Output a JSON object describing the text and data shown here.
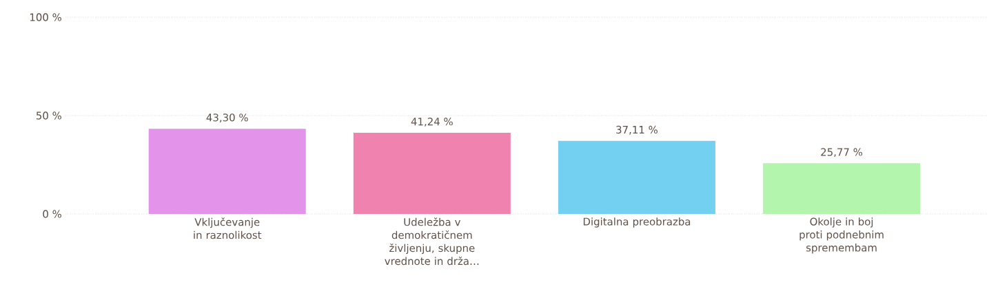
{
  "chart_data": {
    "type": "bar",
    "categories": [
      "Vključevanje in raznolikost",
      "Udeležba v demokratičnem življenju, skupne vrednote in drža…",
      "Digitalna preobrazba",
      "Okolje in boj proti podnebnim spremembam"
    ],
    "values": [
      43.3,
      41.24,
      37.11,
      25.77
    ],
    "colors": [
      "#e393ea",
      "#ef82ae",
      "#74d0f1",
      "#b3f5ad"
    ],
    "value_labels": [
      "43,30 %",
      "41,24 %",
      "37,11 %",
      "25,77 %"
    ],
    "ylim": [
      0,
      100
    ],
    "yticks": [
      {
        "value": 0,
        "label": "0 %"
      },
      {
        "value": 50,
        "label": "50 %"
      },
      {
        "value": 100,
        "label": "100 %"
      }
    ],
    "grid": "y"
  }
}
